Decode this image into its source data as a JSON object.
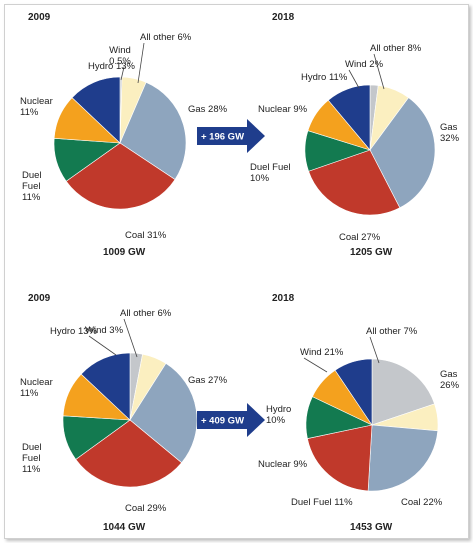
{
  "colors": {
    "Hydro": "#1f3d8c",
    "Wind": "#c4c7cb",
    "All other": "#fbefc0",
    "Gas": "#8ea5be",
    "Coal": "#c0392b",
    "Duel Fuel": "#137a50",
    "Nuclear": "#f4a11e",
    "arrow": "#1f3d8c"
  },
  "arrows": [
    "+ 196 GW",
    "+ 409 GW"
  ],
  "chart_data": [
    {
      "type": "pie",
      "year": "2009",
      "total": "1009 GW",
      "slices": [
        {
          "name": "Wind",
          "value": 0.5,
          "label": [
            "Wind",
            "0.5%"
          ]
        },
        {
          "name": "All other",
          "value": 6,
          "label": [
            "All other 6%"
          ]
        },
        {
          "name": "Gas",
          "value": 28,
          "label": [
            "Gas 28%"
          ]
        },
        {
          "name": "Coal",
          "value": 31,
          "label": [
            "Coal 31%"
          ]
        },
        {
          "name": "Duel Fuel",
          "value": 11,
          "label": [
            "Duel",
            "Fuel",
            "11%"
          ]
        },
        {
          "name": "Nuclear",
          "value": 11,
          "label": [
            "Nuclear",
            "11%"
          ]
        },
        {
          "name": "Hydro",
          "value": 13,
          "label": [
            "Hydro 13%"
          ]
        }
      ]
    },
    {
      "type": "pie",
      "year": "2018",
      "total": "1205 GW",
      "slices": [
        {
          "name": "Wind",
          "value": 2,
          "label": [
            "Wind 2%"
          ]
        },
        {
          "name": "All other",
          "value": 8,
          "label": [
            "All other 8%"
          ]
        },
        {
          "name": "Gas",
          "value": 32,
          "label": [
            "Gas",
            "32%"
          ]
        },
        {
          "name": "Coal",
          "value": 27,
          "label": [
            "Coal 27%"
          ]
        },
        {
          "name": "Duel Fuel",
          "value": 10,
          "label": [
            "Duel Fuel",
            "10%"
          ]
        },
        {
          "name": "Nuclear",
          "value": 9,
          "label": [
            "Nuclear 9%"
          ]
        },
        {
          "name": "Hydro",
          "value": 11,
          "label": [
            "Hydro 11%"
          ]
        }
      ]
    },
    {
      "type": "pie",
      "year": "2009",
      "total": "1044 GW",
      "slices": [
        {
          "name": "Wind",
          "value": 3,
          "label": [
            "Wind 3%"
          ]
        },
        {
          "name": "All other",
          "value": 6,
          "label": [
            "All other 6%"
          ]
        },
        {
          "name": "Gas",
          "value": 27,
          "label": [
            "Gas 27%"
          ]
        },
        {
          "name": "Coal",
          "value": 29,
          "label": [
            "Coal 29%"
          ]
        },
        {
          "name": "Duel Fuel",
          "value": 11,
          "label": [
            "Duel",
            "Fuel",
            "11%"
          ]
        },
        {
          "name": "Nuclear",
          "value": 11,
          "label": [
            "Nuclear",
            "11%"
          ]
        },
        {
          "name": "Hydro",
          "value": 13,
          "label": [
            "Hydro 13%"
          ]
        }
      ]
    },
    {
      "type": "pie",
      "year": "2018",
      "total": "1453 GW",
      "slices": [
        {
          "name": "Wind",
          "value": 21,
          "label": [
            "Wind 21%"
          ]
        },
        {
          "name": "All other",
          "value": 7,
          "label": [
            "All other 7%"
          ]
        },
        {
          "name": "Gas",
          "value": 26,
          "label": [
            "Gas",
            "26%"
          ]
        },
        {
          "name": "Coal",
          "value": 22,
          "label": [
            "Coal 22%"
          ]
        },
        {
          "name": "Duel Fuel",
          "value": 11,
          "label": [
            "Duel Fuel 11%"
          ]
        },
        {
          "name": "Nuclear",
          "value": 9,
          "label": [
            "Nuclear 9%"
          ]
        },
        {
          "name": "Hydro",
          "value": 10,
          "label": [
            "Hydro",
            "10%"
          ]
        }
      ]
    }
  ]
}
